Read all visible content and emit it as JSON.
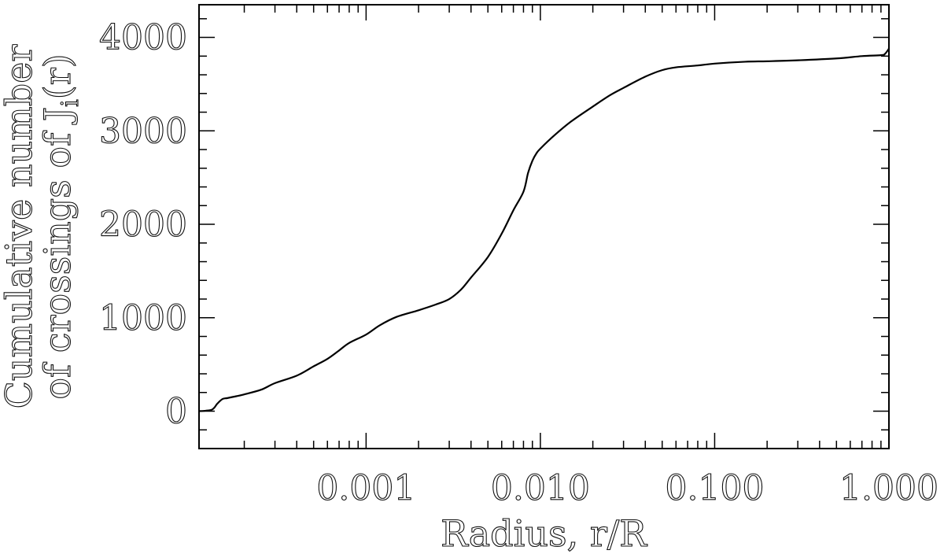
{
  "chart_data": {
    "type": "line",
    "title": "",
    "xlabel": "Radius, r/R",
    "ylabel_line1": "Cumulative number",
    "ylabel_line2": "of crossings of J",
    "ylabel_subscript": "i",
    "ylabel_suffix": "(r)",
    "x_scale": "log",
    "xlim": [
      0.00011,
      1.0
    ],
    "ylim": [
      -400,
      4350
    ],
    "xticks": [
      0.001,
      0.01,
      0.1,
      1.0
    ],
    "xtick_labels": [
      "0.001",
      "0.010",
      "0.100",
      "1.000"
    ],
    "yticks": [
      0,
      1000,
      2000,
      3000,
      4000
    ],
    "ytick_labels": [
      "0",
      "1000",
      "2000",
      "3000",
      "4000"
    ],
    "grid": false,
    "series": [
      {
        "x": [
          0.00011,
          0.00012,
          0.00013,
          0.000135,
          0.00014,
          0.00015,
          0.00016,
          0.00018,
          0.0002,
          0.00025,
          0.0003,
          0.0004,
          0.0005,
          0.0006,
          0.0007,
          0.0008,
          0.001,
          0.0012,
          0.0015,
          0.002,
          0.0025,
          0.003,
          0.0035,
          0.004,
          0.005,
          0.006,
          0.007,
          0.008,
          0.0085,
          0.009,
          0.0095,
          0.01,
          0.012,
          0.015,
          0.02,
          0.025,
          0.03,
          0.04,
          0.05,
          0.06,
          0.08,
          0.1,
          0.15,
          0.2,
          0.3,
          0.5,
          0.7,
          0.9,
          0.95,
          1.0
        ],
        "y": [
          0,
          5,
          15,
          40,
          80,
          130,
          140,
          160,
          180,
          230,
          300,
          380,
          480,
          560,
          650,
          730,
          820,
          920,
          1010,
          1080,
          1140,
          1200,
          1300,
          1430,
          1650,
          1900,
          2150,
          2350,
          2550,
          2680,
          2760,
          2810,
          2950,
          3100,
          3260,
          3380,
          3460,
          3580,
          3650,
          3680,
          3700,
          3720,
          3740,
          3745,
          3755,
          3775,
          3800,
          3810,
          3825,
          3880
        ]
      }
    ]
  }
}
